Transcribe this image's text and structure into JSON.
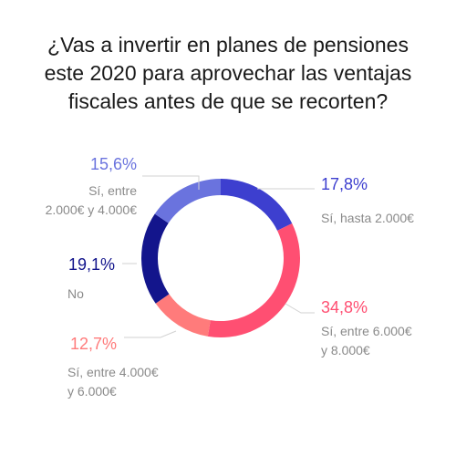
{
  "chart_data": {
    "type": "pie",
    "variant": "donut",
    "title": "¿Vas a invertir en planes de pensiones este 2020 para aprovechar las ventajas fiscales antes de que se recorten?",
    "title_lines": [
      "¿Vas a invertir en planes de pensiones",
      "este 2020 para aprovechar las ventajas",
      "fiscales antes de que se recorten?"
    ],
    "slices": [
      {
        "value_label": "17,8%",
        "value": 17.8,
        "label_lines": [
          "Sí, hasta 2.000€"
        ],
        "color": "#3d3fcf"
      },
      {
        "value_label": "34,8%",
        "value": 34.8,
        "label_lines": [
          "Sí, entre 6.000€",
          "y 8.000€"
        ],
        "color": "#ff4f72"
      },
      {
        "value_label": "12,7%",
        "value": 12.7,
        "label_lines": [
          "Sí, entre 4.000€",
          "y 6.000€"
        ],
        "color": "#ff7b7b"
      },
      {
        "value_label": "19,1%",
        "value": 19.1,
        "label_lines": [
          "No"
        ],
        "color": "#13158c"
      },
      {
        "value_label": "15,6%",
        "value": 15.6,
        "label_lines": [
          "Sí, entre",
          "2.000€ y 4.000€"
        ],
        "color": "#6a73de"
      }
    ]
  }
}
